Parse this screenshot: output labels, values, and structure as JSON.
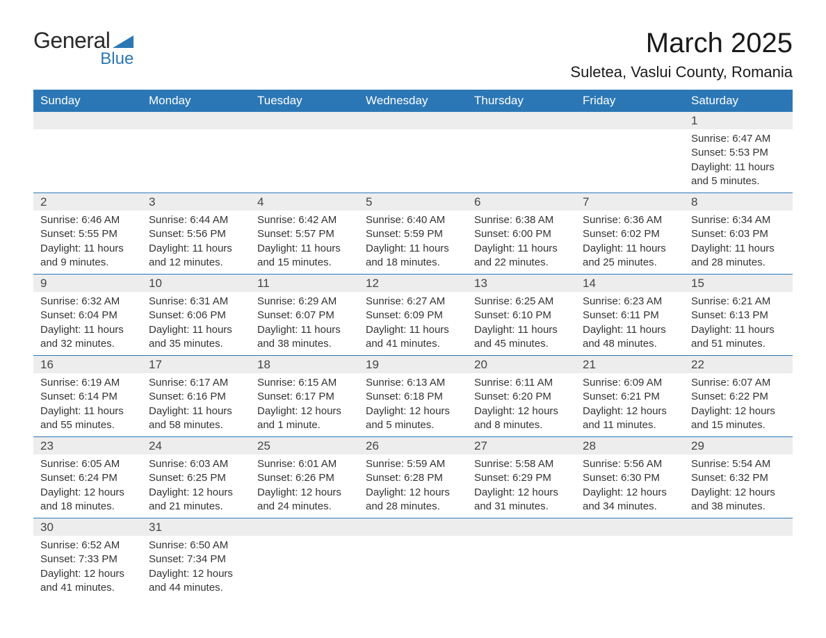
{
  "brand": {
    "word1": "General",
    "word2": "Blue",
    "shape_color": "#2b77b6",
    "text_color": "#2a2a2a"
  },
  "title": {
    "month": "March 2025",
    "location": "Suletea, Vaslui County, Romania"
  },
  "style": {
    "header_bg": "#2b77b6",
    "header_fg": "#ffffff",
    "daynum_bg": "#ededed",
    "daynum_fg": "#444444",
    "row_border": "#2b77b6",
    "cell_fg": "#333333",
    "title_fontsize": 40,
    "location_fontsize": 22,
    "th_fontsize": 17,
    "daynum_fontsize": 17,
    "info_fontsize": 15
  },
  "day_labels": [
    "Sunday",
    "Monday",
    "Tuesday",
    "Wednesday",
    "Thursday",
    "Friday",
    "Saturday"
  ],
  "weeks": [
    [
      null,
      null,
      null,
      null,
      null,
      null,
      {
        "n": "1",
        "sunrise": "Sunrise: 6:47 AM",
        "sunset": "Sunset: 5:53 PM",
        "day": "Daylight: 11 hours and 5 minutes."
      }
    ],
    [
      {
        "n": "2",
        "sunrise": "Sunrise: 6:46 AM",
        "sunset": "Sunset: 5:55 PM",
        "day": "Daylight: 11 hours and 9 minutes."
      },
      {
        "n": "3",
        "sunrise": "Sunrise: 6:44 AM",
        "sunset": "Sunset: 5:56 PM",
        "day": "Daylight: 11 hours and 12 minutes."
      },
      {
        "n": "4",
        "sunrise": "Sunrise: 6:42 AM",
        "sunset": "Sunset: 5:57 PM",
        "day": "Daylight: 11 hours and 15 minutes."
      },
      {
        "n": "5",
        "sunrise": "Sunrise: 6:40 AM",
        "sunset": "Sunset: 5:59 PM",
        "day": "Daylight: 11 hours and 18 minutes."
      },
      {
        "n": "6",
        "sunrise": "Sunrise: 6:38 AM",
        "sunset": "Sunset: 6:00 PM",
        "day": "Daylight: 11 hours and 22 minutes."
      },
      {
        "n": "7",
        "sunrise": "Sunrise: 6:36 AM",
        "sunset": "Sunset: 6:02 PM",
        "day": "Daylight: 11 hours and 25 minutes."
      },
      {
        "n": "8",
        "sunrise": "Sunrise: 6:34 AM",
        "sunset": "Sunset: 6:03 PM",
        "day": "Daylight: 11 hours and 28 minutes."
      }
    ],
    [
      {
        "n": "9",
        "sunrise": "Sunrise: 6:32 AM",
        "sunset": "Sunset: 6:04 PM",
        "day": "Daylight: 11 hours and 32 minutes."
      },
      {
        "n": "10",
        "sunrise": "Sunrise: 6:31 AM",
        "sunset": "Sunset: 6:06 PM",
        "day": "Daylight: 11 hours and 35 minutes."
      },
      {
        "n": "11",
        "sunrise": "Sunrise: 6:29 AM",
        "sunset": "Sunset: 6:07 PM",
        "day": "Daylight: 11 hours and 38 minutes."
      },
      {
        "n": "12",
        "sunrise": "Sunrise: 6:27 AM",
        "sunset": "Sunset: 6:09 PM",
        "day": "Daylight: 11 hours and 41 minutes."
      },
      {
        "n": "13",
        "sunrise": "Sunrise: 6:25 AM",
        "sunset": "Sunset: 6:10 PM",
        "day": "Daylight: 11 hours and 45 minutes."
      },
      {
        "n": "14",
        "sunrise": "Sunrise: 6:23 AM",
        "sunset": "Sunset: 6:11 PM",
        "day": "Daylight: 11 hours and 48 minutes."
      },
      {
        "n": "15",
        "sunrise": "Sunrise: 6:21 AM",
        "sunset": "Sunset: 6:13 PM",
        "day": "Daylight: 11 hours and 51 minutes."
      }
    ],
    [
      {
        "n": "16",
        "sunrise": "Sunrise: 6:19 AM",
        "sunset": "Sunset: 6:14 PM",
        "day": "Daylight: 11 hours and 55 minutes."
      },
      {
        "n": "17",
        "sunrise": "Sunrise: 6:17 AM",
        "sunset": "Sunset: 6:16 PM",
        "day": "Daylight: 11 hours and 58 minutes."
      },
      {
        "n": "18",
        "sunrise": "Sunrise: 6:15 AM",
        "sunset": "Sunset: 6:17 PM",
        "day": "Daylight: 12 hours and 1 minute."
      },
      {
        "n": "19",
        "sunrise": "Sunrise: 6:13 AM",
        "sunset": "Sunset: 6:18 PM",
        "day": "Daylight: 12 hours and 5 minutes."
      },
      {
        "n": "20",
        "sunrise": "Sunrise: 6:11 AM",
        "sunset": "Sunset: 6:20 PM",
        "day": "Daylight: 12 hours and 8 minutes."
      },
      {
        "n": "21",
        "sunrise": "Sunrise: 6:09 AM",
        "sunset": "Sunset: 6:21 PM",
        "day": "Daylight: 12 hours and 11 minutes."
      },
      {
        "n": "22",
        "sunrise": "Sunrise: 6:07 AM",
        "sunset": "Sunset: 6:22 PM",
        "day": "Daylight: 12 hours and 15 minutes."
      }
    ],
    [
      {
        "n": "23",
        "sunrise": "Sunrise: 6:05 AM",
        "sunset": "Sunset: 6:24 PM",
        "day": "Daylight: 12 hours and 18 minutes."
      },
      {
        "n": "24",
        "sunrise": "Sunrise: 6:03 AM",
        "sunset": "Sunset: 6:25 PM",
        "day": "Daylight: 12 hours and 21 minutes."
      },
      {
        "n": "25",
        "sunrise": "Sunrise: 6:01 AM",
        "sunset": "Sunset: 6:26 PM",
        "day": "Daylight: 12 hours and 24 minutes."
      },
      {
        "n": "26",
        "sunrise": "Sunrise: 5:59 AM",
        "sunset": "Sunset: 6:28 PM",
        "day": "Daylight: 12 hours and 28 minutes."
      },
      {
        "n": "27",
        "sunrise": "Sunrise: 5:58 AM",
        "sunset": "Sunset: 6:29 PM",
        "day": "Daylight: 12 hours and 31 minutes."
      },
      {
        "n": "28",
        "sunrise": "Sunrise: 5:56 AM",
        "sunset": "Sunset: 6:30 PM",
        "day": "Daylight: 12 hours and 34 minutes."
      },
      {
        "n": "29",
        "sunrise": "Sunrise: 5:54 AM",
        "sunset": "Sunset: 6:32 PM",
        "day": "Daylight: 12 hours and 38 minutes."
      }
    ],
    [
      {
        "n": "30",
        "sunrise": "Sunrise: 6:52 AM",
        "sunset": "Sunset: 7:33 PM",
        "day": "Daylight: 12 hours and 41 minutes."
      },
      {
        "n": "31",
        "sunrise": "Sunrise: 6:50 AM",
        "sunset": "Sunset: 7:34 PM",
        "day": "Daylight: 12 hours and 44 minutes."
      },
      null,
      null,
      null,
      null,
      null
    ]
  ]
}
